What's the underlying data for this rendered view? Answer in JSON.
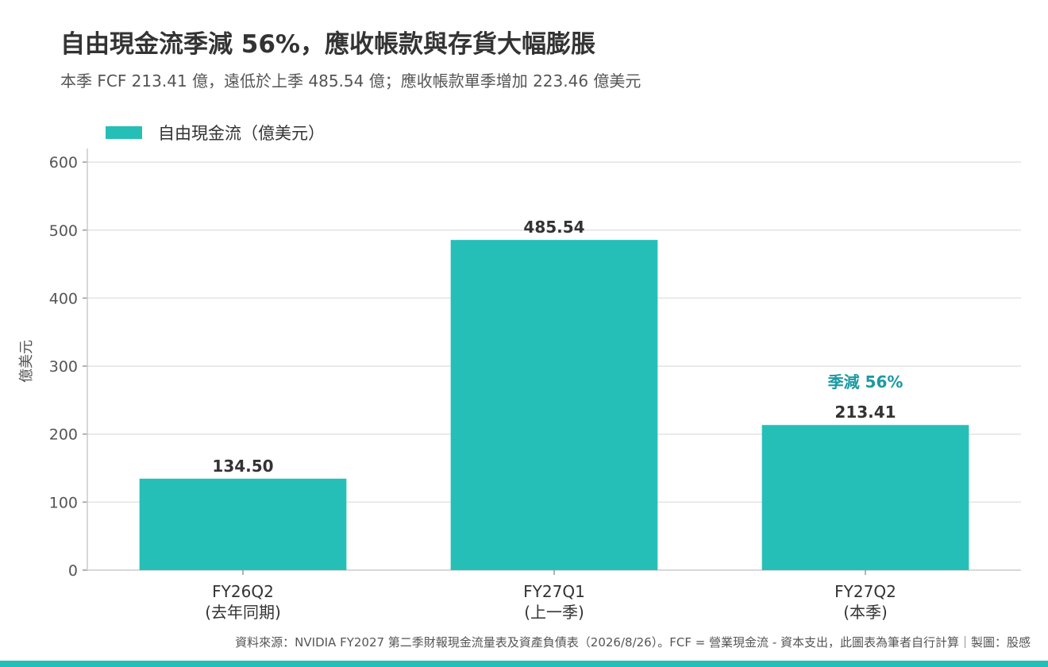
{
  "title": "自由現金流季減 56%，應收帳款與存貨大幅膨脹",
  "subtitle": "本季 FCF 213.41 億，遠低於上季 485.54 億；應收帳款單季增加 223.46 億美元",
  "source": "資料來源：NVIDIA FY2027 第二季財報現金流量表及資產負債表（2026/8/26）。FCF = 營業現金流 - 資本支出，此圖表為筆者自行計算｜製圖：股感",
  "colors": {
    "bar": "#26BFB8",
    "annotation": "#1A9AA3",
    "grid": "#E3E3E3",
    "text": "#333333"
  },
  "chart_data": {
    "type": "bar",
    "categories": [
      [
        "FY26Q2",
        "(去年同期)"
      ],
      [
        "FY27Q1",
        "(上一季)"
      ],
      [
        "FY27Q2",
        "(本季)"
      ]
    ],
    "series": [
      {
        "name": "自由現金流（億美元）",
        "values": [
          134.5,
          485.54,
          213.41
        ]
      }
    ],
    "data_labels": [
      "134.50",
      "485.54",
      "213.41"
    ],
    "ylabel": "億美元",
    "ylim": [
      0,
      620
    ],
    "yticks": [
      0,
      100,
      200,
      300,
      400,
      500,
      600
    ],
    "grid": true,
    "legend": "top-left",
    "annotations": [
      {
        "category_index": 2,
        "text": "季減 56%"
      }
    ]
  }
}
